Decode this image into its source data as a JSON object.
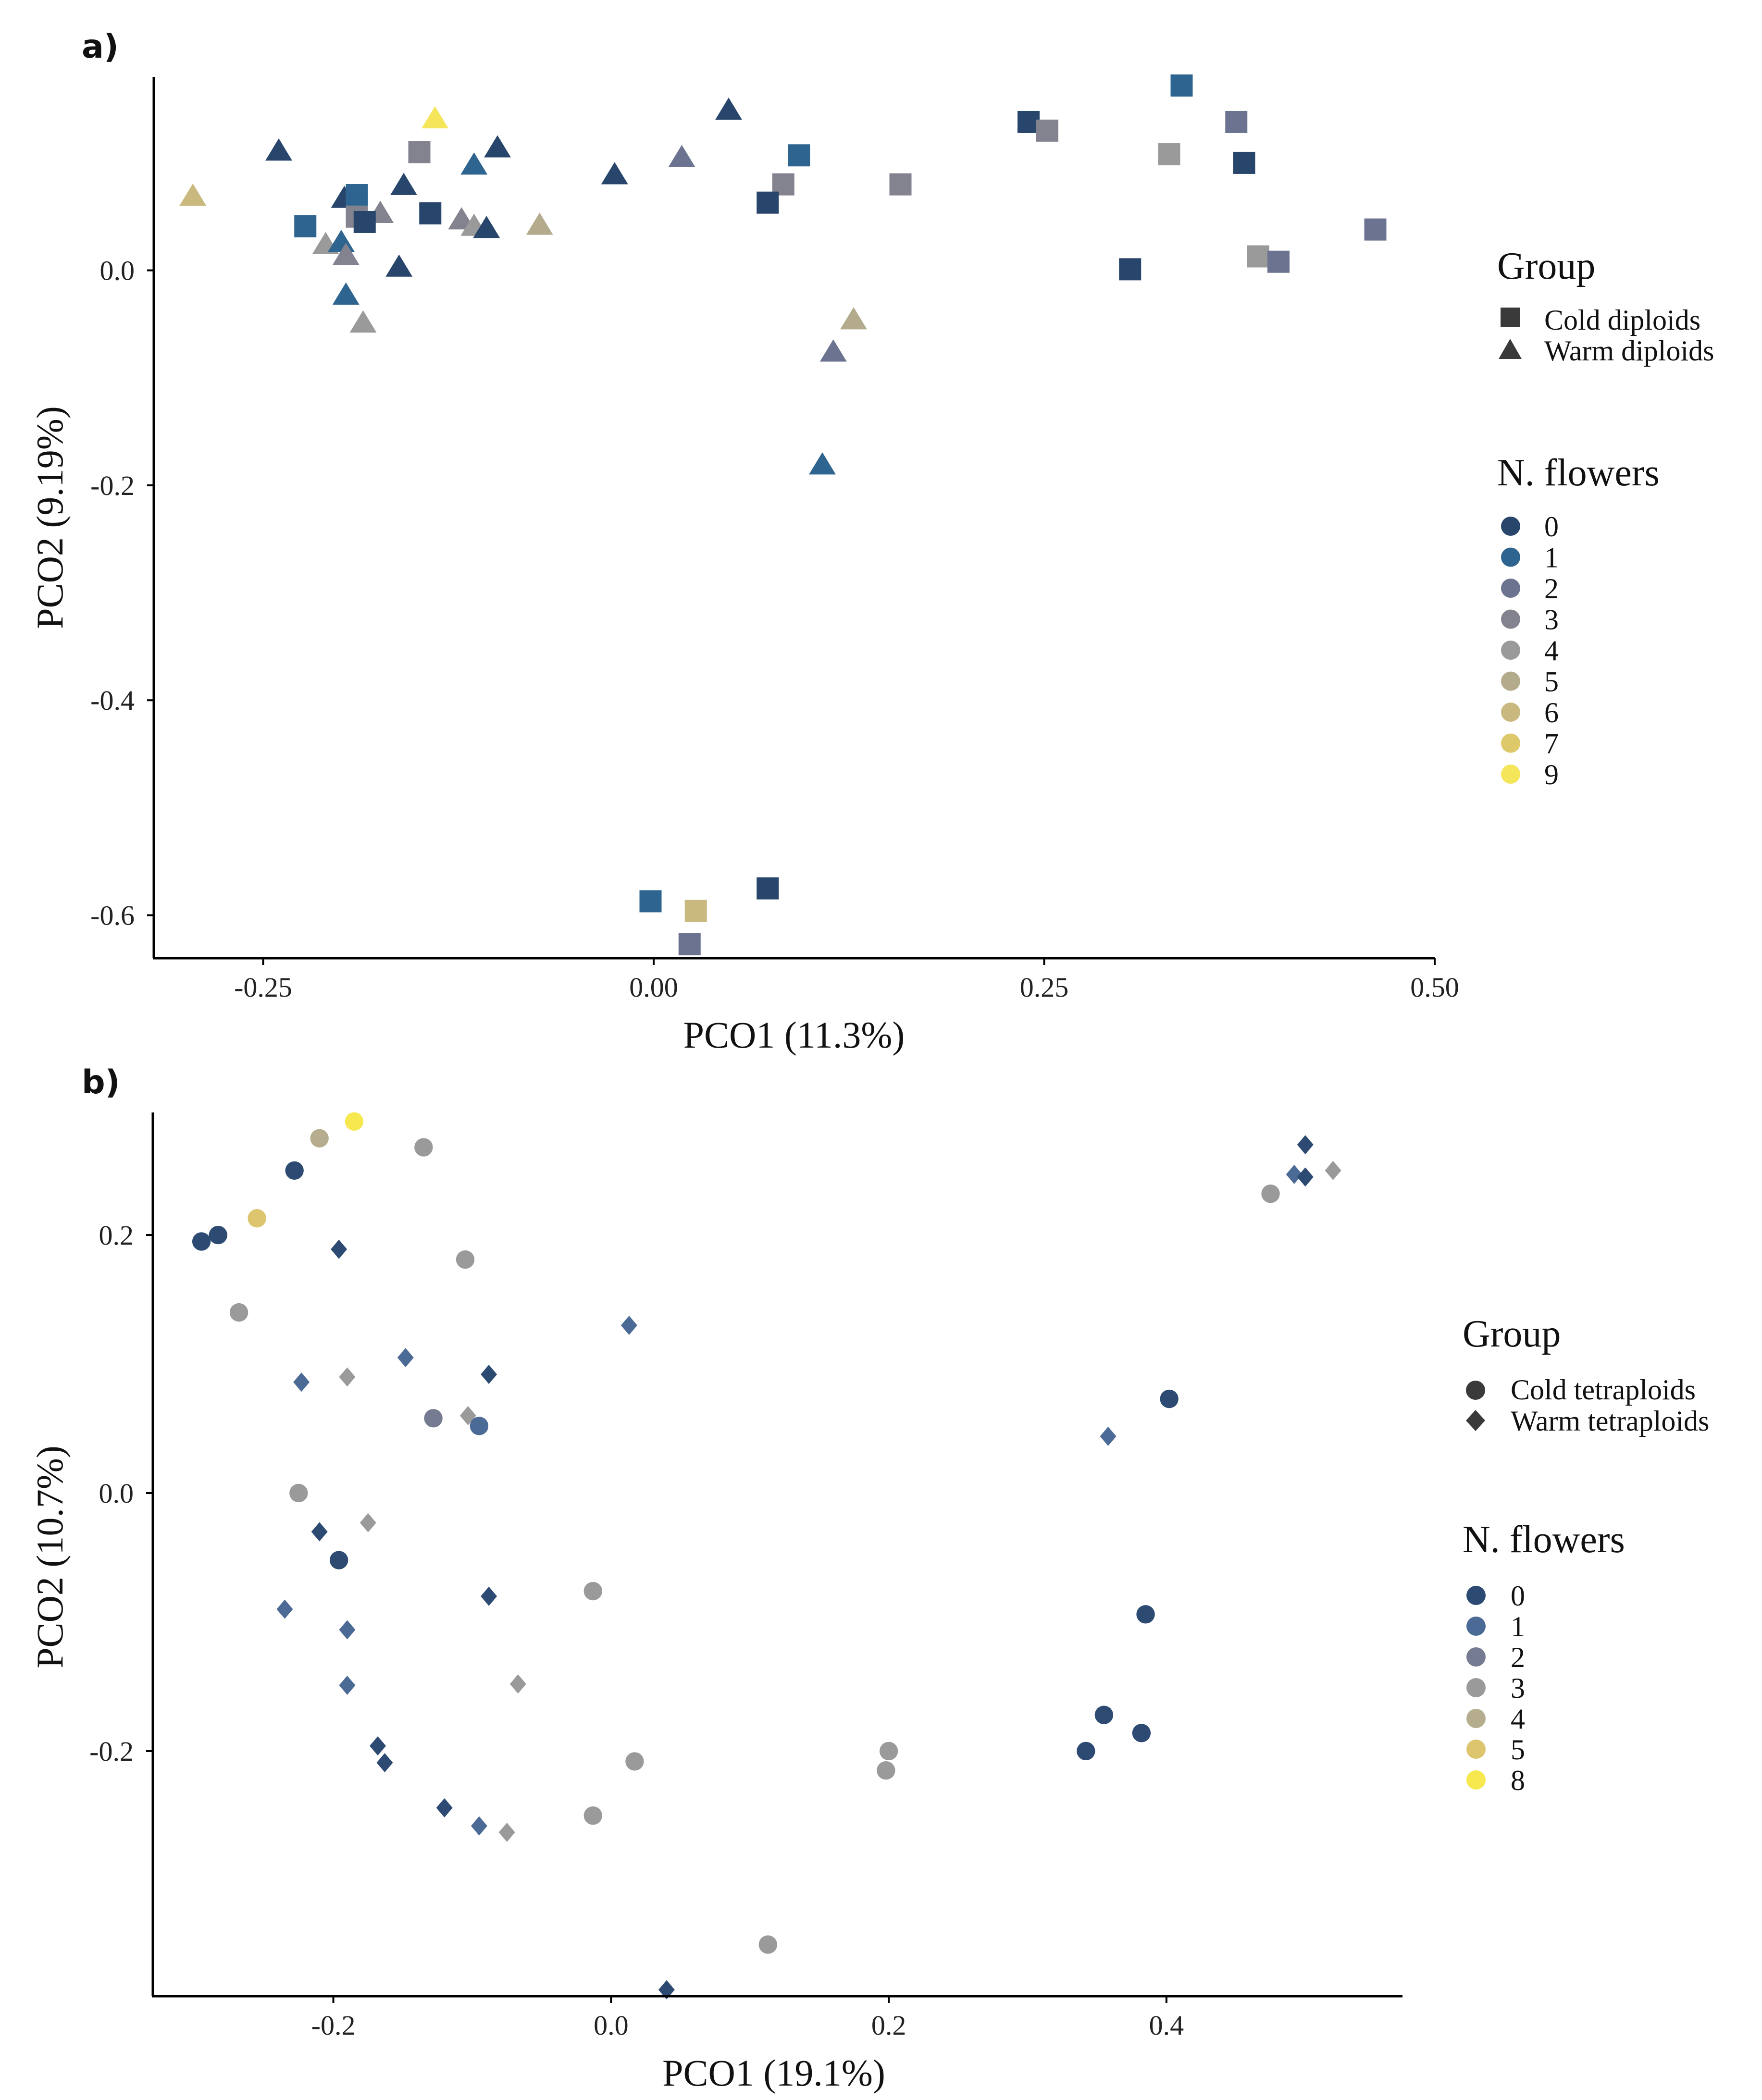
{
  "chart_data": [
    {
      "panel_label": "a)",
      "type": "scatter",
      "xlabel": "PCO1 (11.3%)",
      "ylabel": "PCO2 (9.19%)",
      "xlim": [
        -0.32,
        0.5
      ],
      "ylim": [
        -0.64,
        0.18
      ],
      "xticks": [
        {
          "v": -0.25,
          "label": "-0.25"
        },
        {
          "v": 0.0,
          "label": "0.00"
        },
        {
          "v": 0.25,
          "label": "0.25"
        },
        {
          "v": 0.5,
          "label": "0.50"
        }
      ],
      "yticks": [
        {
          "v": 0.0,
          "label": "0.0"
        },
        {
          "v": -0.2,
          "label": "-0.2"
        },
        {
          "v": -0.4,
          "label": "-0.4"
        },
        {
          "v": -0.6,
          "label": "-0.6"
        }
      ],
      "legend_group": {
        "title": "Group",
        "items": [
          {
            "label": "Cold diploids",
            "shape": "square"
          },
          {
            "label": "Warm diploids",
            "shape": "triangle"
          }
        ]
      },
      "legend_flowers": {
        "title": "N. flowers",
        "items": [
          {
            "label": "0",
            "color": "#28466b"
          },
          {
            "label": "1",
            "color": "#2e6490"
          },
          {
            "label": "2",
            "color": "#6b7390"
          },
          {
            "label": "3",
            "color": "#82838e"
          },
          {
            "label": "4",
            "color": "#9a9a9a"
          },
          {
            "label": "5",
            "color": "#b3ab8c"
          },
          {
            "label": "6",
            "color": "#c9b97e"
          },
          {
            "label": "7",
            "color": "#ddc86a"
          },
          {
            "label": "9",
            "color": "#f5e55a"
          }
        ]
      },
      "points": [
        {
          "x": -0.14,
          "y": 0.14,
          "shape": "triangle",
          "flowers": "9"
        },
        {
          "x": -0.24,
          "y": 0.11,
          "shape": "triangle",
          "flowers": "0"
        },
        {
          "x": -0.15,
          "y": 0.11,
          "shape": "square",
          "flowers": "3"
        },
        {
          "x": -0.1,
          "y": 0.113,
          "shape": "triangle",
          "flowers": "0"
        },
        {
          "x": -0.115,
          "y": 0.097,
          "shape": "triangle",
          "flowers": "1"
        },
        {
          "x": -0.025,
          "y": 0.088,
          "shape": "triangle",
          "flowers": "0"
        },
        {
          "x": 0.048,
          "y": 0.148,
          "shape": "triangle",
          "flowers": "0"
        },
        {
          "x": 0.018,
          "y": 0.104,
          "shape": "triangle",
          "flowers": "2"
        },
        {
          "x": 0.093,
          "y": 0.107,
          "shape": "square",
          "flowers": "1"
        },
        {
          "x": 0.083,
          "y": 0.08,
          "shape": "square",
          "flowers": "3"
        },
        {
          "x": 0.073,
          "y": 0.063,
          "shape": "square",
          "flowers": "0"
        },
        {
          "x": 0.158,
          "y": 0.08,
          "shape": "square",
          "flowers": "3"
        },
        {
          "x": -0.16,
          "y": 0.078,
          "shape": "triangle",
          "flowers": "0"
        },
        {
          "x": -0.295,
          "y": 0.068,
          "shape": "triangle",
          "flowers": "6"
        },
        {
          "x": -0.198,
          "y": 0.066,
          "shape": "triangle",
          "flowers": "0"
        },
        {
          "x": -0.19,
          "y": 0.07,
          "shape": "square",
          "flowers": "1"
        },
        {
          "x": -0.175,
          "y": 0.052,
          "shape": "triangle",
          "flowers": "3"
        },
        {
          "x": -0.143,
          "y": 0.053,
          "shape": "square",
          "flowers": "0"
        },
        {
          "x": -0.19,
          "y": 0.05,
          "shape": "square",
          "flowers": "3"
        },
        {
          "x": -0.185,
          "y": 0.045,
          "shape": "square",
          "flowers": "0"
        },
        {
          "x": -0.223,
          "y": 0.041,
          "shape": "square",
          "flowers": "1"
        },
        {
          "x": -0.123,
          "y": 0.046,
          "shape": "triangle",
          "flowers": "3"
        },
        {
          "x": -0.115,
          "y": 0.04,
          "shape": "triangle",
          "flowers": "4"
        },
        {
          "x": -0.107,
          "y": 0.038,
          "shape": "triangle",
          "flowers": "0"
        },
        {
          "x": -0.073,
          "y": 0.041,
          "shape": "triangle",
          "flowers": "5"
        },
        {
          "x": -0.21,
          "y": 0.023,
          "shape": "triangle",
          "flowers": "4"
        },
        {
          "x": -0.2,
          "y": 0.025,
          "shape": "triangle",
          "flowers": "1"
        },
        {
          "x": -0.197,
          "y": 0.013,
          "shape": "triangle",
          "flowers": "3"
        },
        {
          "x": -0.163,
          "y": 0.002,
          "shape": "triangle",
          "flowers": "0"
        },
        {
          "x": -0.197,
          "y": -0.024,
          "shape": "triangle",
          "flowers": "1"
        },
        {
          "x": -0.186,
          "y": -0.05,
          "shape": "triangle",
          "flowers": "4"
        },
        {
          "x": 0.128,
          "y": -0.047,
          "shape": "triangle",
          "flowers": "5"
        },
        {
          "x": 0.115,
          "y": -0.077,
          "shape": "triangle",
          "flowers": "2"
        },
        {
          "x": 0.108,
          "y": -0.182,
          "shape": "triangle",
          "flowers": "1"
        },
        {
          "x": 0.338,
          "y": 0.172,
          "shape": "square",
          "flowers": "1"
        },
        {
          "x": 0.24,
          "y": 0.138,
          "shape": "square",
          "flowers": "0"
        },
        {
          "x": 0.252,
          "y": 0.13,
          "shape": "square",
          "flowers": "3"
        },
        {
          "x": 0.373,
          "y": 0.138,
          "shape": "square",
          "flowers": "2"
        },
        {
          "x": 0.33,
          "y": 0.108,
          "shape": "square",
          "flowers": "4"
        },
        {
          "x": 0.378,
          "y": 0.1,
          "shape": "square",
          "flowers": "0"
        },
        {
          "x": 0.462,
          "y": 0.038,
          "shape": "square",
          "flowers": "2"
        },
        {
          "x": 0.387,
          "y": 0.013,
          "shape": "square",
          "flowers": "4"
        },
        {
          "x": 0.4,
          "y": 0.008,
          "shape": "square",
          "flowers": "2"
        },
        {
          "x": 0.305,
          "y": 0.001,
          "shape": "square",
          "flowers": "0"
        },
        {
          "x": -0.002,
          "y": -0.587,
          "shape": "square",
          "flowers": "1"
        },
        {
          "x": 0.073,
          "y": -0.575,
          "shape": "square",
          "flowers": "0"
        },
        {
          "x": 0.027,
          "y": -0.596,
          "shape": "square",
          "flowers": "6"
        },
        {
          "x": 0.023,
          "y": -0.627,
          "shape": "square",
          "flowers": "2"
        }
      ]
    },
    {
      "panel_label": "b)",
      "type": "scatter",
      "xlabel": "PCO1 (19.1%)",
      "ylabel": "PCO2 (10.7%)",
      "xlim": [
        -0.33,
        0.57
      ],
      "ylim": [
        -0.39,
        0.295
      ],
      "xticks": [
        {
          "v": -0.2,
          "label": "-0.2"
        },
        {
          "v": 0.0,
          "label": "0.0"
        },
        {
          "v": 0.2,
          "label": "0.2"
        },
        {
          "v": 0.4,
          "label": "0.4"
        }
      ],
      "yticks": [
        {
          "v": 0.2,
          "label": "0.2"
        },
        {
          "v": 0.0,
          "label": "0.0"
        },
        {
          "v": -0.2,
          "label": "-0.2"
        }
      ],
      "legend_group": {
        "title": "Group",
        "items": [
          {
            "label": "Cold tetraploids",
            "shape": "circle"
          },
          {
            "label": "Warm tetraploids",
            "shape": "diamond"
          }
        ]
      },
      "legend_flowers": {
        "title": "N. flowers",
        "items": [
          {
            "label": "0",
            "color": "#2c4a72"
          },
          {
            "label": "1",
            "color": "#4c6a96"
          },
          {
            "label": "2",
            "color": "#757b90"
          },
          {
            "label": "3",
            "color": "#9a9a9a"
          },
          {
            "label": "4",
            "color": "#b5ad8e"
          },
          {
            "label": "5",
            "color": "#dcc56d"
          },
          {
            "label": "8",
            "color": "#f7e84f"
          }
        ]
      },
      "points": [
        {
          "x": -0.185,
          "y": 0.288,
          "shape": "circle",
          "flowers": "8"
        },
        {
          "x": -0.21,
          "y": 0.275,
          "shape": "circle",
          "flowers": "4"
        },
        {
          "x": -0.135,
          "y": 0.268,
          "shape": "circle",
          "flowers": "3"
        },
        {
          "x": -0.228,
          "y": 0.25,
          "shape": "circle",
          "flowers": "0"
        },
        {
          "x": -0.255,
          "y": 0.213,
          "shape": "circle",
          "flowers": "5"
        },
        {
          "x": -0.283,
          "y": 0.2,
          "shape": "circle",
          "flowers": "0"
        },
        {
          "x": -0.295,
          "y": 0.195,
          "shape": "circle",
          "flowers": "0"
        },
        {
          "x": -0.196,
          "y": 0.189,
          "shape": "diamond",
          "flowers": "0"
        },
        {
          "x": -0.105,
          "y": 0.181,
          "shape": "circle",
          "flowers": "3"
        },
        {
          "x": -0.268,
          "y": 0.14,
          "shape": "circle",
          "flowers": "3"
        },
        {
          "x": 0.013,
          "y": 0.13,
          "shape": "diamond",
          "flowers": "1"
        },
        {
          "x": -0.148,
          "y": 0.105,
          "shape": "diamond",
          "flowers": "1"
        },
        {
          "x": -0.088,
          "y": 0.092,
          "shape": "diamond",
          "flowers": "0"
        },
        {
          "x": -0.19,
          "y": 0.09,
          "shape": "diamond",
          "flowers": "3"
        },
        {
          "x": -0.223,
          "y": 0.086,
          "shape": "diamond",
          "flowers": "1"
        },
        {
          "x": -0.128,
          "y": 0.058,
          "shape": "circle",
          "flowers": "2"
        },
        {
          "x": -0.103,
          "y": 0.06,
          "shape": "diamond",
          "flowers": "3"
        },
        {
          "x": -0.095,
          "y": 0.052,
          "shape": "circle",
          "flowers": "1"
        },
        {
          "x": -0.225,
          "y": 0.0,
          "shape": "circle",
          "flowers": "3"
        },
        {
          "x": -0.175,
          "y": -0.023,
          "shape": "diamond",
          "flowers": "3"
        },
        {
          "x": -0.21,
          "y": -0.03,
          "shape": "diamond",
          "flowers": "0"
        },
        {
          "x": -0.196,
          "y": -0.052,
          "shape": "circle",
          "flowers": "0"
        },
        {
          "x": -0.013,
          "y": -0.076,
          "shape": "circle",
          "flowers": "3"
        },
        {
          "x": -0.088,
          "y": -0.08,
          "shape": "diamond",
          "flowers": "0"
        },
        {
          "x": -0.235,
          "y": -0.09,
          "shape": "diamond",
          "flowers": "1"
        },
        {
          "x": -0.19,
          "y": -0.106,
          "shape": "diamond",
          "flowers": "1"
        },
        {
          "x": -0.19,
          "y": -0.149,
          "shape": "diamond",
          "flowers": "1"
        },
        {
          "x": -0.067,
          "y": -0.148,
          "shape": "diamond",
          "flowers": "3"
        },
        {
          "x": -0.168,
          "y": -0.196,
          "shape": "diamond",
          "flowers": "0"
        },
        {
          "x": -0.163,
          "y": -0.209,
          "shape": "diamond",
          "flowers": "0"
        },
        {
          "x": 0.017,
          "y": -0.208,
          "shape": "circle",
          "flowers": "3"
        },
        {
          "x": -0.12,
          "y": -0.244,
          "shape": "diamond",
          "flowers": "0"
        },
        {
          "x": -0.013,
          "y": -0.25,
          "shape": "circle",
          "flowers": "3"
        },
        {
          "x": -0.095,
          "y": -0.258,
          "shape": "diamond",
          "flowers": "1"
        },
        {
          "x": -0.075,
          "y": -0.263,
          "shape": "diamond",
          "flowers": "3"
        },
        {
          "x": 0.113,
          "y": -0.35,
          "shape": "circle",
          "flowers": "3"
        },
        {
          "x": 0.04,
          "y": -0.385,
          "shape": "diamond",
          "flowers": "0"
        },
        {
          "x": 0.2,
          "y": -0.2,
          "shape": "circle",
          "flowers": "3"
        },
        {
          "x": 0.198,
          "y": -0.215,
          "shape": "circle",
          "flowers": "3"
        },
        {
          "x": 0.402,
          "y": 0.073,
          "shape": "circle",
          "flowers": "0"
        },
        {
          "x": 0.358,
          "y": 0.044,
          "shape": "diamond",
          "flowers": "1"
        },
        {
          "x": 0.385,
          "y": -0.094,
          "shape": "circle",
          "flowers": "0"
        },
        {
          "x": 0.355,
          "y": -0.172,
          "shape": "circle",
          "flowers": "0"
        },
        {
          "x": 0.382,
          "y": -0.186,
          "shape": "circle",
          "flowers": "0"
        },
        {
          "x": 0.342,
          "y": -0.2,
          "shape": "circle",
          "flowers": "0"
        },
        {
          "x": 0.475,
          "y": 0.232,
          "shape": "circle",
          "flowers": "3"
        },
        {
          "x": 0.5,
          "y": 0.27,
          "shape": "diamond",
          "flowers": "0"
        },
        {
          "x": 0.492,
          "y": 0.247,
          "shape": "diamond",
          "flowers": "1"
        },
        {
          "x": 0.5,
          "y": 0.245,
          "shape": "diamond",
          "flowers": "0"
        },
        {
          "x": 0.52,
          "y": 0.25,
          "shape": "diamond",
          "flowers": "3"
        }
      ]
    }
  ]
}
